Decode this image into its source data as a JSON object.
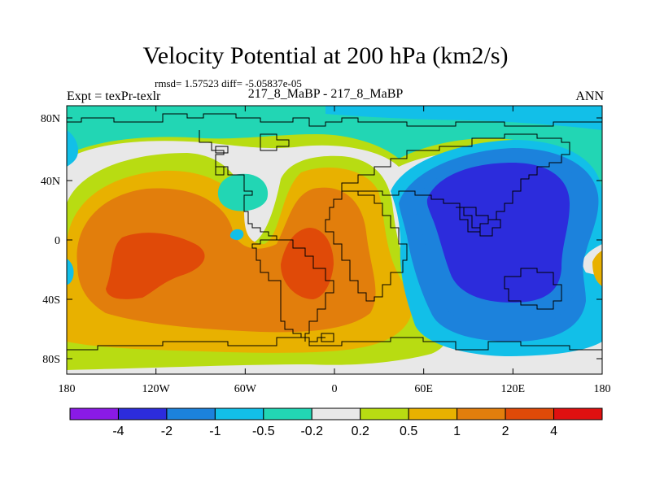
{
  "title": "Velocity Potential at 200 hPa (km2/s)",
  "stats": "rmsd= 1.57523 diff= -5.05837e-05",
  "left_label": "Expt = texPr-texlr",
  "center_label": "217_8_MaBP - 217_8_MaBP",
  "right_label": "ANN",
  "lat_ticks": [
    "80N",
    "40N",
    "0",
    "40S",
    "80S"
  ],
  "lon_ticks": [
    "180",
    "120W",
    "60W",
    "0",
    "60E",
    "120E",
    "180"
  ],
  "colorbar": {
    "levels": [
      "-4",
      "-2",
      "-1",
      "-0.5",
      "-0.2",
      "0.2",
      "0.5",
      "1",
      "2",
      "4"
    ],
    "colors": [
      "#8a1ae6",
      "#2c2cdc",
      "#1c82dc",
      "#12bfe8",
      "#22d6b4",
      "#e8e8e8",
      "#b8dc12",
      "#e8b100",
      "#e27e0c",
      "#e04a08",
      "#e01010"
    ]
  },
  "field_colors": {
    "very_neg": "#2c2cdc",
    "neg": "#1c82dc",
    "mid_neg": "#12bfe8",
    "weak_neg": "#22d6b4",
    "zero": "#e8e8e8",
    "weak_pos": "#b8dc12",
    "mid_pos": "#e8b100",
    "pos": "#e27e0c",
    "very_pos": "#e04a08"
  }
}
